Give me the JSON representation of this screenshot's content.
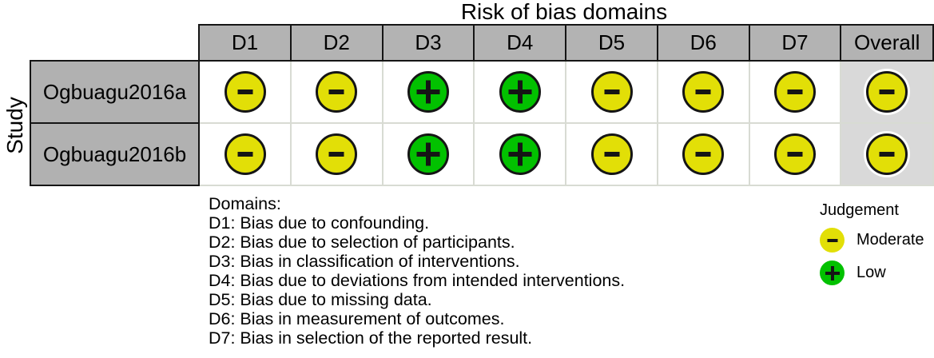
{
  "chart_data": {
    "type": "table",
    "title": "Risk of bias domains",
    "xlabel": "",
    "ylabel": "Study",
    "categories": [
      "D1",
      "D2",
      "D3",
      "D4",
      "D5",
      "D6",
      "D7",
      "Overall"
    ],
    "series": [
      {
        "name": "Ogbuagu2016a",
        "values": [
          "Moderate",
          "Moderate",
          "Low",
          "Low",
          "Moderate",
          "Moderate",
          "Moderate",
          "Moderate"
        ]
      },
      {
        "name": "Ogbuagu2016b",
        "values": [
          "Moderate",
          "Moderate",
          "Low",
          "Low",
          "Moderate",
          "Moderate",
          "Moderate",
          "Moderate"
        ]
      }
    ],
    "legend_title": "Judgement",
    "legend_position": "bottom-right",
    "grid": "on"
  },
  "domains": {
    "heading": "Domains:",
    "lines": [
      "D1: Bias due to confounding.",
      "D2: Bias due to selection of participants.",
      "D3: Bias in classification of interventions.",
      "D4: Bias due to deviations from intended interventions.",
      "D5: Bias due to missing data.",
      "D6: Bias in measurement of outcomes.",
      "D7: Bias in selection of the reported result."
    ]
  },
  "legend": {
    "title": "Judgement",
    "items": [
      {
        "label": "Moderate",
        "symbol": "-",
        "judgement": "Moderate",
        "color": "#E2DF07"
      },
      {
        "label": "Low",
        "symbol": "+",
        "judgement": "Low",
        "color": "#02C100"
      }
    ]
  },
  "colors": {
    "moderate": "#E2DF07",
    "low": "#02C100",
    "header_bg": "#B3B3B3",
    "study_bg": "#B1B1B1",
    "overall_col_bg": "#D9D9D9",
    "grid_line": "#D8DBD3",
    "border": "#151515"
  }
}
